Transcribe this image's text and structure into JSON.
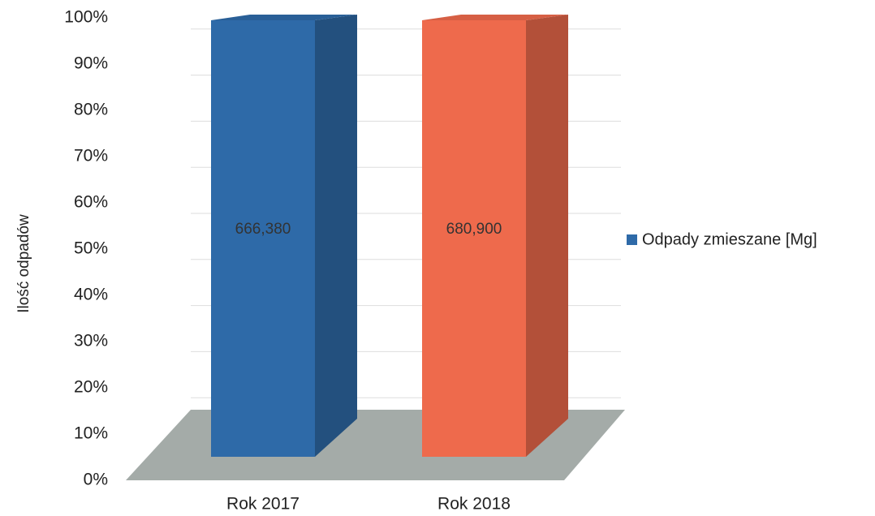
{
  "chart_data": {
    "type": "bar3d",
    "percent_stacked": true,
    "y_label": "Ilość odpadów",
    "categories": [
      "Rok 2017",
      "Rok 2018"
    ],
    "series": [
      {
        "name": "Odpady zmieszane [Mg]",
        "color": "#2e6aa8",
        "colors": [
          "#2e6aa8",
          "#ee6a4c"
        ],
        "values": [
          666.38,
          680.9
        ],
        "value_labels": [
          "666,380",
          "680,900"
        ]
      }
    ],
    "ylim": [
      0,
      100
    ],
    "yticks": [
      {
        "value": 0,
        "label": "0%"
      },
      {
        "value": 10,
        "label": "10%"
      },
      {
        "value": 20,
        "label": "20%"
      },
      {
        "value": 30,
        "label": "30%"
      },
      {
        "value": 40,
        "label": "40%"
      },
      {
        "value": 50,
        "label": "50%"
      },
      {
        "value": 60,
        "label": "60%"
      },
      {
        "value": 70,
        "label": "70%"
      },
      {
        "value": 80,
        "label": "80%"
      },
      {
        "value": 90,
        "label": "90%"
      },
      {
        "value": 100,
        "label": "100%"
      }
    ],
    "grid": true,
    "legend": "right"
  }
}
